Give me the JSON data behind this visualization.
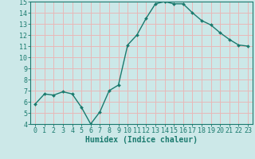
{
  "x": [
    0,
    1,
    2,
    3,
    4,
    5,
    6,
    7,
    8,
    9,
    10,
    11,
    12,
    13,
    14,
    15,
    16,
    17,
    18,
    19,
    20,
    21,
    22,
    23
  ],
  "y": [
    5.8,
    6.7,
    6.6,
    6.9,
    6.7,
    5.5,
    4.0,
    5.1,
    7.0,
    7.5,
    11.1,
    12.0,
    13.5,
    14.8,
    15.0,
    14.8,
    14.8,
    14.0,
    13.3,
    12.9,
    12.2,
    11.6,
    11.1,
    11.0
  ],
  "line_color": "#1a7a6e",
  "marker": "D",
  "marker_size": 2,
  "bg_color": "#cce8e8",
  "grid_color": "#e8b8b8",
  "xlabel": "Humidex (Indice chaleur)",
  "ylim": [
    4,
    15
  ],
  "xlim_min": -0.5,
  "xlim_max": 23.5,
  "yticks": [
    4,
    5,
    6,
    7,
    8,
    9,
    10,
    11,
    12,
    13,
    14,
    15
  ],
  "xticks": [
    0,
    1,
    2,
    3,
    4,
    5,
    6,
    7,
    8,
    9,
    10,
    11,
    12,
    13,
    14,
    15,
    16,
    17,
    18,
    19,
    20,
    21,
    22,
    23
  ],
  "xlabel_fontsize": 7,
  "tick_fontsize": 6,
  "axis_color": "#1a7a6e",
  "linewidth": 1.0
}
